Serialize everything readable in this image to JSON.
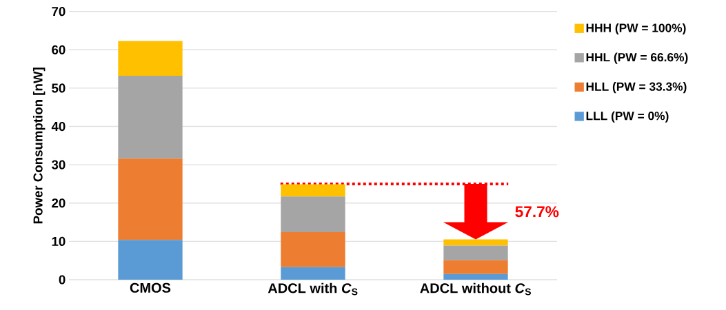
{
  "chart_data": {
    "type": "bar",
    "stacked": true,
    "ylabel": "Power Consumption  [nW]",
    "categories": [
      "CMOS",
      "ADCL with *C*$_{S}$",
      "ADCL without *C*$_{S}$"
    ],
    "series": [
      {
        "name": "LLL (PW = 0%)",
        "color": "#5b9bd5",
        "values": [
          10.4,
          3.3,
          1.5
        ]
      },
      {
        "name": "HLL (PW = 33.3%)",
        "color": "#ed7d31",
        "values": [
          21.2,
          9.1,
          3.6
        ]
      },
      {
        "name": "HHL (PW = 66.6%)",
        "color": "#a5a5a5",
        "values": [
          21.6,
          9.3,
          3.8
        ]
      },
      {
        "name": "HHH  (PW = 100%)",
        "color": "#ffc000",
        "values": [
          9.1,
          3.2,
          1.6
        ]
      }
    ],
    "ylim": [
      0,
      70
    ],
    "yticks": [
      0,
      10,
      20,
      30,
      40,
      50,
      60,
      70
    ],
    "grid": "y",
    "legend": "right",
    "ref_lines": [
      {
        "axis": "y",
        "value": 25,
        "color": "#ff0000",
        "line_style": "dotted"
      }
    ],
    "annotations": [
      "57.7%"
    ]
  }
}
